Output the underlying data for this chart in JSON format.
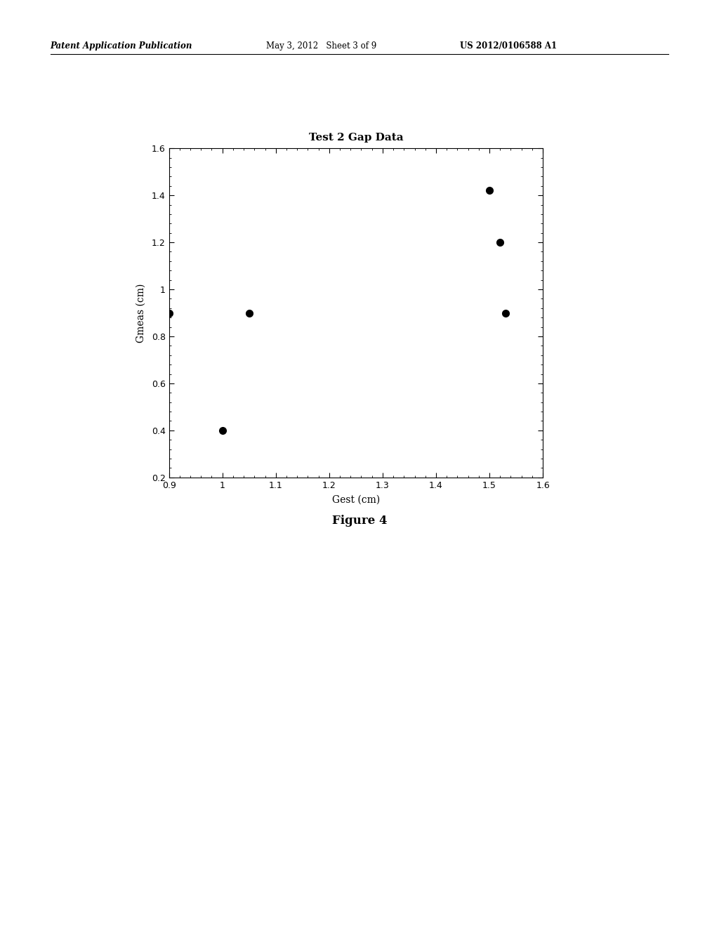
{
  "title": "Test 2 Gap Data",
  "xlabel": "Gest (cm)",
  "ylabel": "Gmeas (cm)",
  "x_data": [
    0.9,
    1.0,
    1.05,
    1.5,
    1.52,
    1.53
  ],
  "y_data": [
    0.9,
    0.4,
    0.9,
    1.42,
    1.2,
    0.9
  ],
  "xlim": [
    0.9,
    1.6
  ],
  "ylim": [
    0.2,
    1.6
  ],
  "xticks": [
    0.9,
    1.0,
    1.1,
    1.2,
    1.3,
    1.4,
    1.5,
    1.6
  ],
  "yticks": [
    0.2,
    0.4,
    0.6,
    0.8,
    1.0,
    1.2,
    1.4,
    1.6
  ],
  "marker_color": "#000000",
  "marker_size": 7,
  "background_color": "#ffffff",
  "header_left": "Patent Application Publication",
  "header_mid": "May 3, 2012   Sheet 3 of 9",
  "header_right": "US 2012/0106588 A1",
  "figure_caption": "Figure 4",
  "title_fontsize": 11,
  "axis_label_fontsize": 10,
  "tick_fontsize": 9,
  "header_fontsize": 8.5,
  "caption_fontsize": 12
}
